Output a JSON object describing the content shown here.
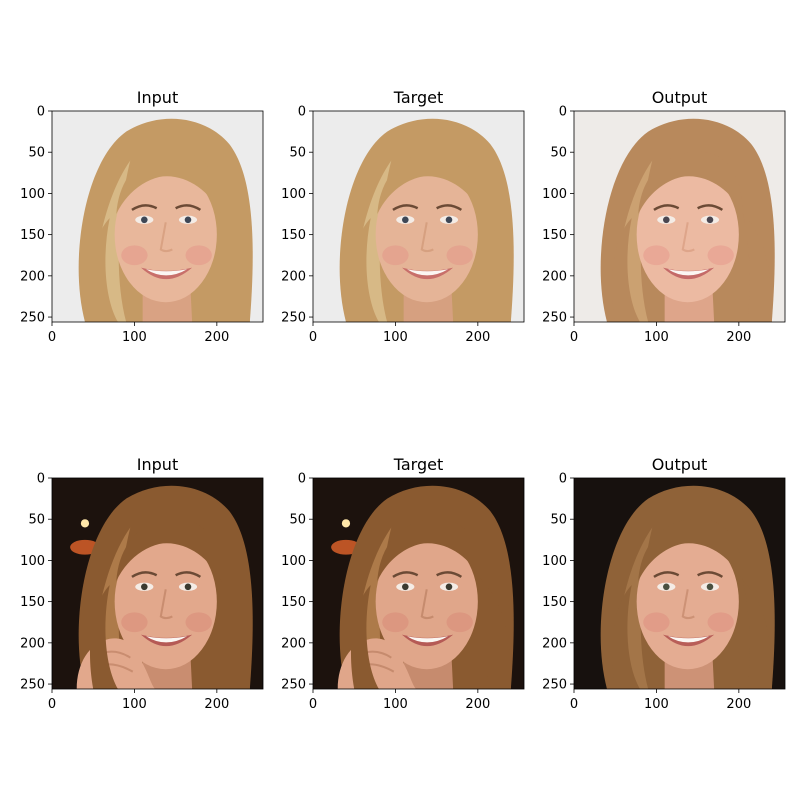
{
  "figure": {
    "rows": [
      {
        "panels": [
          {
            "title": "Input",
            "photo": {
              "subject": "smiling woman with long blonde hair",
              "background": "#ececec",
              "hair": "#c49a64",
              "hair_light": "#dcc08e",
              "skin": "#e8b79b",
              "skin_shade": "#d9a283",
              "cheek": "#e49888",
              "lips": "#c86f6a",
              "eye": "#3e4756"
            }
          },
          {
            "title": "Target",
            "photo": {
              "subject": "smiling woman with long blonde hair",
              "background": "#ececec",
              "hair": "#c49a64",
              "hair_light": "#dcc08e",
              "skin": "#e5b497",
              "skin_shade": "#d6a080",
              "cheek": "#e49888",
              "lips": "#c86f6a",
              "eye": "#3e4756"
            }
          },
          {
            "title": "Output",
            "photo": {
              "subject": "smiling woman with light brown hair (generated)",
              "background": "#eeebe8",
              "hair": "#b8895c",
              "hair_light": "#cfa777",
              "skin": "#ecbaa2",
              "skin_shade": "#dea58a",
              "cheek": "#e8998c",
              "lips": "#c46a68",
              "eye": "#4a4650"
            }
          }
        ]
      },
      {
        "panels": [
          {
            "title": "Input",
            "photo": {
              "subject": "smiling woman resting chin on hand, dark background",
              "background": "#1c120d",
              "hair": "#8a5a30",
              "hair_light": "#b58250",
              "skin": "#e2a88c",
              "skin_shade": "#c98d70",
              "cheek": "#d98a78",
              "lips": "#b55a55",
              "eye": "#3a3a30",
              "hand": true,
              "lights": true
            }
          },
          {
            "title": "Target",
            "photo": {
              "subject": "smiling woman resting chin on hand, dark background",
              "background": "#1c120d",
              "hair": "#8a5a30",
              "hair_light": "#b58250",
              "skin": "#e0a68a",
              "skin_shade": "#c68b6e",
              "cheek": "#d98a78",
              "lips": "#b55a55",
              "eye": "#3a3a30",
              "hand": true,
              "lights": true
            }
          },
          {
            "title": "Output",
            "photo": {
              "subject": "smiling woman with brown hair, dark background (generated)",
              "background": "#17110e",
              "hair": "#8f6238",
              "hair_light": "#a87a4c",
              "skin": "#e4ac92",
              "skin_shade": "#cd9276",
              "cheek": "#df9080",
              "lips": "#b85e58",
              "eye": "#4a5040",
              "hand": false,
              "lights": false
            }
          }
        ]
      }
    ],
    "axes": {
      "xlim": [
        0,
        256
      ],
      "ylim": [
        256,
        0
      ],
      "x_ticks": [
        "0",
        "100",
        "200"
      ],
      "x_tick_values": [
        0,
        100,
        200
      ],
      "y_ticks": [
        "0",
        "50",
        "100",
        "150",
        "200",
        "250"
      ],
      "y_tick_values": [
        0,
        50,
        100,
        150,
        200,
        250
      ]
    }
  }
}
